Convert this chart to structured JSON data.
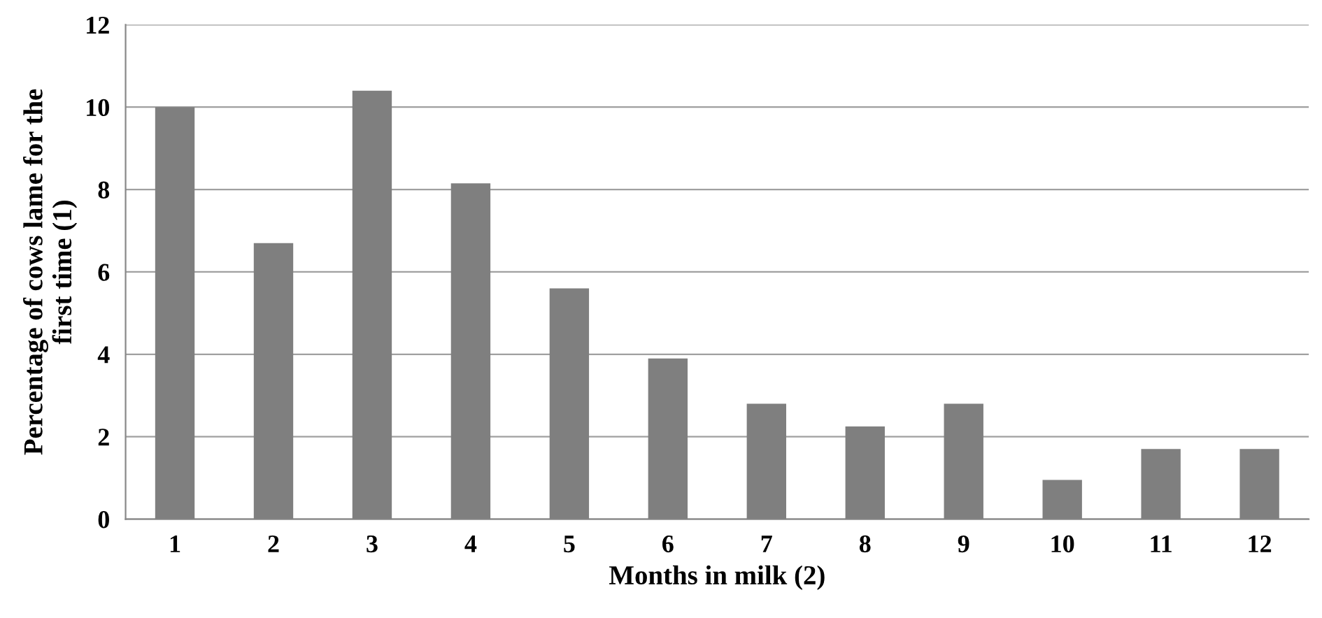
{
  "chart_data": {
    "type": "bar",
    "xlabel": "Months in milk (2)",
    "ylabel": "Percentage of cows lame for the\nfirst time (1)",
    "categories": [
      "1",
      "2",
      "3",
      "4",
      "5",
      "6",
      "7",
      "8",
      "9",
      "10",
      "11",
      "12"
    ],
    "values": [
      10.0,
      6.7,
      10.4,
      8.15,
      5.6,
      3.9,
      2.8,
      2.25,
      2.8,
      0.95,
      1.7,
      1.7
    ],
    "color": "#7f7f7f",
    "ylim": [
      0,
      12
    ],
    "yticks": [
      0,
      2,
      4,
      6,
      8,
      10,
      12
    ],
    "grid": "y",
    "legend": false
  }
}
